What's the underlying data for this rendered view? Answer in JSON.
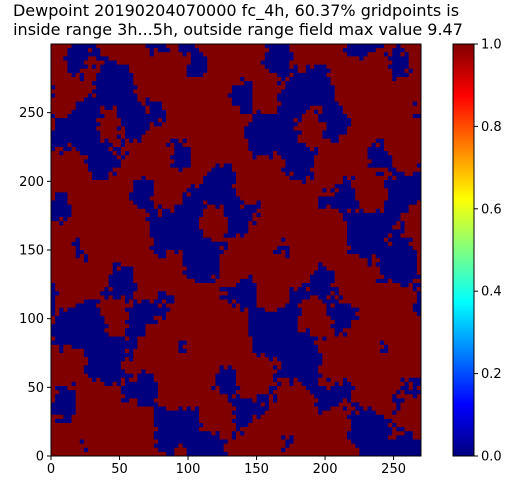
{
  "chart_data": {
    "type": "heatmap",
    "title_lines": [
      "Dewpoint 20190204070000 fc_4h, 60.37% gridpoints is",
      "inside range 3h...5h, outside range field max value 9.47"
    ],
    "grid_size": {
      "nx": 270,
      "ny": 300
    },
    "inside_fraction_percent": 60.37,
    "values": "binary field: 1 = inside range (dark red), 0 = outside range (dark blue)",
    "xlim": [
      0,
      270
    ],
    "ylim": [
      0,
      300
    ],
    "x_ticks": [
      "0",
      "50",
      "100",
      "150",
      "200",
      "250"
    ],
    "y_ticks": [
      "0",
      "50",
      "100",
      "150",
      "200",
      "250"
    ],
    "colorbar": {
      "colormap": "jet",
      "range": [
        0.0,
        1.0
      ],
      "ticks": [
        "0.0",
        "0.2",
        "0.4",
        "0.6",
        "0.8",
        "1.0"
      ]
    },
    "colors": {
      "inside": "#800000",
      "outside": "#00007f",
      "jet_stops": [
        "#00007f",
        "#0000ff",
        "#0080ff",
        "#00ffff",
        "#80ff80",
        "#ffff00",
        "#ff8000",
        "#ff0000",
        "#800000"
      ]
    }
  }
}
